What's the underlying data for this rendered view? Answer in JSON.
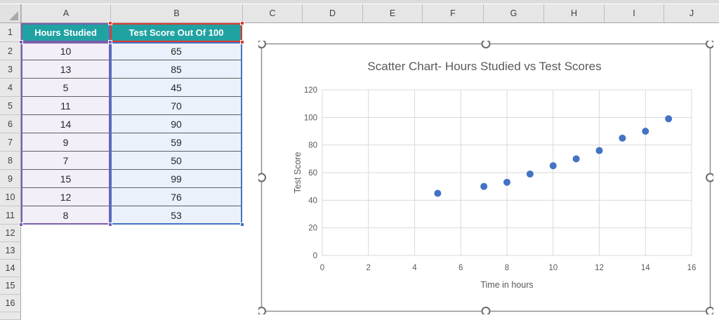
{
  "colors": {
    "table_header_fill": "#21A2A2",
    "table_header_text": "#FFFFFF",
    "hours_column_fill": "#F2EFF8",
    "score_column_fill": "#EAF1FB",
    "range_category_purple": "#7B5FAE",
    "range_values_blue": "#4472C4",
    "range_name_red": "#E03A2F",
    "chart_text": "#595959",
    "chart_gridline": "#D9D9D9",
    "chart_border": "#8F8F8F",
    "point_color": "#4472C4"
  },
  "spreadsheet": {
    "column_headers": [
      "A",
      "B",
      "C",
      "D",
      "E",
      "F",
      "G",
      "H",
      "I",
      "J"
    ],
    "row_headers": [
      "1",
      "2",
      "3",
      "4",
      "5",
      "6",
      "7",
      "8",
      "9",
      "10",
      "11",
      "12",
      "13",
      "14",
      "15",
      "16"
    ],
    "table": {
      "headers": [
        "Hours Studied",
        "Test Score Out Of 100"
      ],
      "rows": [
        [
          "10",
          "65"
        ],
        [
          "13",
          "85"
        ],
        [
          "5",
          "45"
        ],
        [
          "11",
          "70"
        ],
        [
          "14",
          "90"
        ],
        [
          "9",
          "59"
        ],
        [
          "7",
          "50"
        ],
        [
          "15",
          "99"
        ],
        [
          "12",
          "76"
        ],
        [
          "8",
          "53"
        ]
      ]
    }
  },
  "chart_data": {
    "type": "scatter",
    "title": "Scatter Chart- Hours Studied vs Test Scores",
    "xlabel": "Time in hours",
    "ylabel": "Test Score",
    "x": [
      10,
      13,
      5,
      11,
      14,
      9,
      7,
      15,
      12,
      8
    ],
    "y": [
      65,
      85,
      45,
      70,
      90,
      59,
      50,
      99,
      76,
      53
    ],
    "xlim": [
      0,
      16
    ],
    "ylim": [
      0,
      120
    ],
    "xticks": [
      0,
      2,
      4,
      6,
      8,
      10,
      12,
      14,
      16
    ],
    "yticks": [
      0,
      20,
      40,
      60,
      80,
      100,
      120
    ],
    "grid": true,
    "legend": false,
    "point_color": "#4472C4"
  }
}
